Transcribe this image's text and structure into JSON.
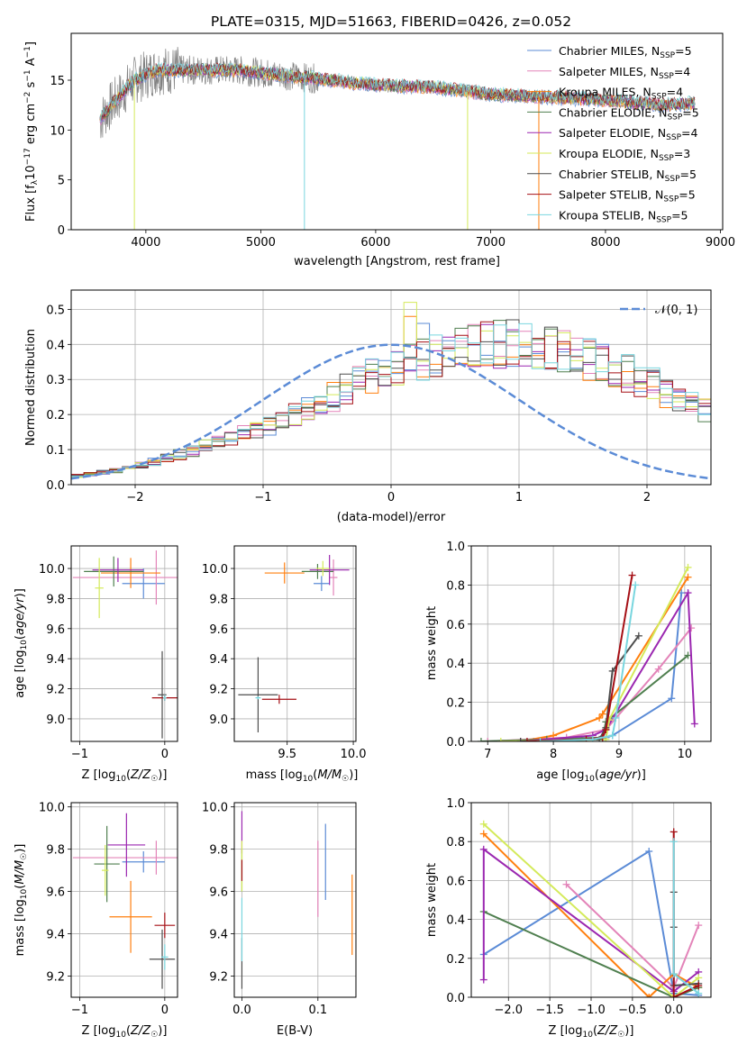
{
  "figure_title": "PLATE=0315, MJD=51663, FIBERID=0426, z=0.052",
  "model_colors": {
    "Chabrier MILES": "#5b8bd6",
    "Salpeter MILES": "#e384b9",
    "Kroupa MILES": "#ff7f0e",
    "Chabrier ELODIE": "#4f7f4f",
    "Salpeter ELODIE": "#9b27b0",
    "Kroupa ELODIE": "#d4ea5a",
    "Chabrier STELIB": "#4d4d4d",
    "Salpeter STELIB": "#a50f15",
    "Kroupa STELIB": "#79d6df"
  },
  "chart_data": [
    {
      "type": "line",
      "xlabel": "wavelength [Angstrom, rest frame]",
      "ylabel": "Flux [f_λ10^-17 erg cm^-2 s^-1 A^-1]",
      "xlim": [
        3350,
        9020
      ],
      "ylim": [
        0,
        19.7
      ],
      "xticks": [
        4000,
        5000,
        6000,
        7000,
        8000,
        9000
      ],
      "yticks": [
        0,
        5,
        10,
        15
      ],
      "grid": false,
      "legend_position": "upper-right",
      "legend": [
        {
          "model": "Chabrier MILES",
          "nssp": "5"
        },
        {
          "model": "Salpeter MILES",
          "nssp": "4"
        },
        {
          "model": "Kroupa MILES",
          "nssp": "4"
        },
        {
          "model": "Chabrier ELODIE",
          "nssp": "5"
        },
        {
          "model": "Salpeter ELODIE",
          "nssp": "4"
        },
        {
          "model": "Kroupa ELODIE",
          "nssp": "3"
        },
        {
          "model": "Chabrier STELIB",
          "nssp": "5"
        },
        {
          "model": "Salpeter STELIB",
          "nssp": "5"
        },
        {
          "model": "Kroupa STELIB",
          "nssp": "5"
        }
      ],
      "data_color": "#808080",
      "data_range": [
        3600,
        8780
      ],
      "continuum": [
        [
          3600,
          11
        ],
        [
          3700,
          12.5
        ],
        [
          3900,
          15
        ],
        [
          4100,
          16
        ],
        [
          4400,
          16
        ],
        [
          4800,
          16
        ],
        [
          5200,
          15.5
        ],
        [
          5600,
          15
        ],
        [
          6000,
          14.5
        ],
        [
          6500,
          14.3
        ],
        [
          7000,
          13.6
        ],
        [
          7500,
          13.3
        ],
        [
          8000,
          13
        ],
        [
          8500,
          12.5
        ],
        [
          8780,
          12.7
        ]
      ]
    },
    {
      "type": "step",
      "xlabel": "(data-model)/error",
      "ylabel": "Normed distribution",
      "xlim": [
        -2.5,
        2.5
      ],
      "ylim": [
        0,
        0.555
      ],
      "xticks": [
        -2,
        -1,
        0,
        1,
        2
      ],
      "yticks": [
        0.0,
        0.1,
        0.2,
        0.3,
        0.4,
        0.5
      ],
      "grid": true,
      "legend": "𝒩(0, 1)",
      "gauss_color": "#5b8bd6",
      "bin_edges_range": [
        -2.5,
        2.5
      ],
      "bin_width": 0.1,
      "series_profile": [
        0.025,
        0.03,
        0.035,
        0.04,
        0.045,
        0.055,
        0.065,
        0.075,
        0.085,
        0.095,
        0.11,
        0.12,
        0.13,
        0.145,
        0.16,
        0.17,
        0.18,
        0.2,
        0.22,
        0.235,
        0.25,
        0.27,
        0.29,
        0.31,
        0.32,
        0.335,
        0.35,
        0.36,
        0.37,
        0.38,
        0.39,
        0.395,
        0.4,
        0.4,
        0.405,
        0.41,
        0.4,
        0.395,
        0.385,
        0.375,
        0.36,
        0.35,
        0.335,
        0.32,
        0.3,
        0.285,
        0.265,
        0.25,
        0.23,
        0.215
      ]
    },
    {
      "type": "errorbar",
      "xlabel": "Z [log10(Z/Z☉)]",
      "ylabel": "age [log10(age/yr)]",
      "xlim": [
        -1.1,
        0.15
      ],
      "ylim": [
        8.85,
        10.15
      ],
      "xticks": [
        -1,
        0
      ],
      "yticks": [
        9.0,
        9.2,
        9.4,
        9.6,
        9.8,
        10.0
      ],
      "grid": true,
      "points": [
        {
          "model": "Chabrier MILES",
          "x": -0.25,
          "xe": 0.25,
          "y": 9.9,
          "ye": 0.1
        },
        {
          "model": "Salpeter MILES",
          "x": -0.1,
          "xe": 0.98,
          "y": 9.94,
          "ye": 0.18
        },
        {
          "model": "Kroupa MILES",
          "x": -0.4,
          "xe": 0.35,
          "y": 9.97,
          "ye": 0.1
        },
        {
          "model": "Chabrier ELODIE",
          "x": -0.6,
          "xe": 0.35,
          "y": 9.98,
          "ye": 0.1
        },
        {
          "model": "Salpeter ELODIE",
          "x": -0.55,
          "xe": 0.3,
          "y": 9.99,
          "ye": 0.08
        },
        {
          "model": "Kroupa ELODIE",
          "x": -0.77,
          "xe": 0.05,
          "y": 9.87,
          "ye": 0.2
        },
        {
          "model": "Chabrier STELIB",
          "x": -0.03,
          "xe": 0.05,
          "y": 9.16,
          "ye": 0.29
        },
        {
          "model": "Salpeter STELIB",
          "x": 0.0,
          "xe": 0.15,
          "y": 9.14,
          "ye": 0.02
        },
        {
          "model": "Kroupa STELIB",
          "x": 0.0,
          "xe": 0.02,
          "y": 9.14,
          "ye": 0.02
        }
      ]
    },
    {
      "type": "errorbar",
      "xlabel": "mass [log10(M/M☉)]",
      "ylabel": "",
      "xlim": [
        9.1,
        10.02
      ],
      "ylim": [
        8.85,
        10.15
      ],
      "xticks": [
        9.5,
        10.0
      ],
      "yticks": [
        9.0,
        9.2,
        9.4,
        9.6,
        9.8,
        10.0
      ],
      "grid": true,
      "points": [
        {
          "model": "Chabrier MILES",
          "x": 9.76,
          "xe": 0.06,
          "y": 9.9,
          "ye": 0.05
        },
        {
          "model": "Salpeter MILES",
          "x": 9.85,
          "xe": 0.03,
          "y": 9.94,
          "ye": 0.12
        },
        {
          "model": "Kroupa MILES",
          "x": 9.48,
          "xe": 0.15,
          "y": 9.97,
          "ye": 0.07
        },
        {
          "model": "Chabrier ELODIE",
          "x": 9.73,
          "xe": 0.12,
          "y": 9.98,
          "ye": 0.05
        },
        {
          "model": "Salpeter ELODIE",
          "x": 9.82,
          "xe": 0.15,
          "y": 9.99,
          "ye": 0.1
        },
        {
          "model": "Kroupa ELODIE",
          "x": 9.77,
          "xe": 0.05,
          "y": 10.0,
          "ye": 0.05
        },
        {
          "model": "Chabrier STELIB",
          "x": 9.28,
          "xe": 0.15,
          "y": 9.16,
          "ye": 0.25
        },
        {
          "model": "Salpeter STELIB",
          "x": 9.44,
          "xe": 0.13,
          "y": 9.13,
          "ye": 0.03
        },
        {
          "model": "Kroupa STELIB",
          "x": 9.28,
          "xe": 0.02,
          "y": 9.14,
          "ye": 0.01
        }
      ]
    },
    {
      "type": "line",
      "xlabel": "age [log10(age/yr)]",
      "ylabel": "mass weight",
      "xlim": [
        6.75,
        10.4
      ],
      "ylim": [
        0,
        1
      ],
      "xticks": [
        7,
        8,
        9,
        10
      ],
      "yticks": [
        0.0,
        0.2,
        0.4,
        0.6,
        0.8,
        1.0
      ],
      "grid": true,
      "series": [
        {
          "model": "Chabrier MILES",
          "x": [
            7.7,
            8.8,
            8.9,
            9.8,
            9.95
          ],
          "y": [
            0.0,
            0.02,
            0.03,
            0.22,
            0.76
          ]
        },
        {
          "model": "Salpeter MILES",
          "x": [
            7.0,
            8.2,
            8.8,
            9.6,
            10.1
          ],
          "y": [
            0.0,
            0.02,
            0.06,
            0.37,
            0.58
          ]
        },
        {
          "model": "Kroupa MILES",
          "x": [
            7.5,
            8.0,
            8.7,
            8.75,
            10.05
          ],
          "y": [
            0.0,
            0.03,
            0.12,
            0.14,
            0.84
          ]
        },
        {
          "model": "Chabrier ELODIE",
          "x": [
            6.9,
            7.9,
            8.75,
            8.8,
            10.05
          ],
          "y": [
            0.0,
            0.01,
            0.02,
            0.1,
            0.44
          ]
        },
        {
          "model": "Salpeter ELODIE",
          "x": [
            7.5,
            8.6,
            8.8,
            10.05,
            10.15
          ],
          "y": [
            0.0,
            0.03,
            0.06,
            0.76,
            0.09
          ]
        },
        {
          "model": "Kroupa ELODIE",
          "x": [
            7.2,
            8.8,
            8.85,
            10.05
          ],
          "y": [
            0.0,
            0.01,
            0.11,
            0.89
          ]
        },
        {
          "model": "Chabrier STELIB",
          "x": [
            7.5,
            8.7,
            8.8,
            8.9,
            9.3
          ],
          "y": [
            0.0,
            0.01,
            0.07,
            0.36,
            0.54
          ]
        },
        {
          "model": "Salpeter STELIB",
          "x": [
            7.6,
            8.5,
            8.75,
            8.8,
            9.2
          ],
          "y": [
            0.0,
            0.01,
            0.02,
            0.06,
            0.85
          ]
        },
        {
          "model": "Kroupa STELIB",
          "x": [
            7.8,
            8.6,
            8.9,
            8.95,
            9.25
          ],
          "y": [
            0.0,
            0.01,
            0.03,
            0.12,
            0.8
          ]
        }
      ]
    },
    {
      "type": "errorbar",
      "xlabel": "Z [log10(Z/Z☉)]",
      "ylabel": "mass [log10(M/M☉)]",
      "xlim": [
        -1.1,
        0.15
      ],
      "ylim": [
        9.1,
        10.02
      ],
      "xticks": [
        -1,
        0
      ],
      "yticks": [
        9.2,
        9.4,
        9.6,
        9.8,
        10.0
      ],
      "grid": true,
      "points": [
        {
          "model": "Chabrier MILES",
          "x": -0.25,
          "xe": 0.25,
          "y": 9.74,
          "ye": 0.05
        },
        {
          "model": "Salpeter MILES",
          "x": -0.1,
          "xe": 0.98,
          "y": 9.76,
          "ye": 0.08
        },
        {
          "model": "Kroupa MILES",
          "x": -0.4,
          "xe": 0.25,
          "y": 9.48,
          "ye": 0.17
        },
        {
          "model": "Chabrier ELODIE",
          "x": -0.68,
          "xe": 0.15,
          "y": 9.73,
          "ye": 0.18
        },
        {
          "model": "Salpeter ELODIE",
          "x": -0.45,
          "xe": 0.22,
          "y": 9.82,
          "ye": 0.15
        },
        {
          "model": "Kroupa ELODIE",
          "x": -0.7,
          "xe": 0.04,
          "y": 9.7,
          "ye": 0.12
        },
        {
          "model": "Chabrier STELIB",
          "x": -0.03,
          "xe": 0.15,
          "y": 9.28,
          "ye": 0.14
        },
        {
          "model": "Salpeter STELIB",
          "x": 0.0,
          "xe": 0.12,
          "y": 9.44,
          "ye": 0.06
        },
        {
          "model": "Kroupa STELIB",
          "x": 0.0,
          "xe": 0.04,
          "y": 9.29,
          "ye": 0.06
        }
      ]
    },
    {
      "type": "errorbar",
      "xlabel": "E(B-V)",
      "ylabel": "",
      "xlim": [
        -0.01,
        0.15
      ],
      "ylim": [
        9.1,
        10.02
      ],
      "xticks": [
        0.0,
        0.1
      ],
      "yticks": [
        9.2,
        9.4,
        9.6,
        9.8,
        10.0
      ],
      "grid": true,
      "points": [
        {
          "model": "Chabrier MILES",
          "x": 0.11,
          "xe": 0,
          "y": 9.74,
          "ye": 0.18
        },
        {
          "model": "Salpeter MILES",
          "x": 0.1,
          "xe": 0,
          "y": 9.66,
          "ye": 0.18
        },
        {
          "model": "Kroupa MILES",
          "x": 0.145,
          "xe": 0,
          "y": 9.49,
          "ye": 0.19
        },
        {
          "model": "Chabrier ELODIE",
          "x": 0.0,
          "xe": 0,
          "y": 9.7,
          "ye": 0.1
        },
        {
          "model": "Salpeter ELODIE",
          "x": 0.0,
          "xe": 0,
          "y": 9.88,
          "ye": 0.1
        },
        {
          "model": "Kroupa ELODIE",
          "x": 0.0,
          "xe": 0,
          "y": 9.72,
          "ye": 0.12
        },
        {
          "model": "Chabrier STELIB",
          "x": 0.0,
          "xe": 0,
          "y": 9.26,
          "ye": 0.12
        },
        {
          "model": "Salpeter STELIB",
          "x": 0.0,
          "xe": 0,
          "y": 9.7,
          "ye": 0.05
        },
        {
          "model": "Kroupa STELIB",
          "x": 0.0,
          "xe": 0,
          "y": 9.42,
          "ye": 0.15
        }
      ]
    },
    {
      "type": "line",
      "xlabel": "Z [log10(Z/Z☉)]",
      "ylabel": "mass weight",
      "xlim": [
        -2.45,
        0.45
      ],
      "ylim": [
        0,
        1
      ],
      "xticks": [
        -2.0,
        -1.5,
        -1.0,
        -0.5,
        0.0
      ],
      "yticks": [
        0.0,
        0.2,
        0.4,
        0.6,
        0.8,
        1.0
      ],
      "grid": true,
      "series": [
        {
          "model": "Chabrier MILES",
          "x": [
            -2.3,
            -0.3,
            0.0,
            0.3
          ],
          "y": [
            0.22,
            0.75,
            0.02,
            0.01
          ]
        },
        {
          "model": "Salpeter MILES",
          "x": [
            -1.3,
            0.0,
            0.3
          ],
          "y": [
            0.58,
            0.05,
            0.37
          ]
        },
        {
          "model": "Kroupa MILES",
          "x": [
            -2.3,
            -0.3,
            0.0,
            0.3
          ],
          "y": [
            0.84,
            0.0,
            0.12,
            0.05
          ]
        },
        {
          "model": "Chabrier ELODIE",
          "x": [
            -2.3,
            0.0,
            0.3
          ],
          "y": [
            0.44,
            0.0,
            0.05
          ]
        },
        {
          "model": "Salpeter ELODIE",
          "x": [
            -2.3,
            -2.3,
            0.0,
            0.3
          ],
          "y": [
            0.09,
            0.76,
            0.03,
            0.13
          ]
        },
        {
          "model": "Kroupa ELODIE",
          "x": [
            -2.3,
            0.0,
            0.3
          ],
          "y": [
            0.89,
            0.0,
            0.1
          ]
        },
        {
          "model": "Chabrier STELIB",
          "x": [
            0.0,
            0.0,
            0.0,
            0.3
          ],
          "y": [
            0.54,
            0.36,
            0.06,
            0.07
          ]
        },
        {
          "model": "Salpeter STELIB",
          "x": [
            0.0,
            0.0,
            0.3
          ],
          "y": [
            0.85,
            0.0,
            0.06
          ]
        },
        {
          "model": "Kroupa STELIB",
          "x": [
            0.0,
            0.0,
            0.3
          ],
          "y": [
            0.8,
            0.12,
            0.02
          ]
        }
      ]
    }
  ]
}
